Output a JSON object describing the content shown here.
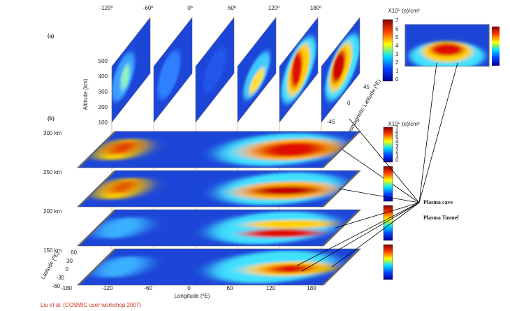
{
  "panel_labels": [
    "(a)",
    "(b)"
  ],
  "longitude_top": [
    "-120º",
    "-60º",
    "0º",
    "60º",
    "120º",
    "180º"
  ],
  "altitude_axis": {
    "title": "Altitude (km)",
    "ticks": [
      "500",
      "400",
      "300",
      "200",
      "100"
    ]
  },
  "latitude_side": {
    "title": "Geomagnetic Latitude (ºE)",
    "ticks": [
      "45",
      "0",
      "-45"
    ]
  },
  "colorbar_title": "X10⁵ (e)/cm³",
  "colorbar_ticks": [
    "7",
    "6",
    "5",
    "4",
    "3",
    "2",
    "1",
    "0"
  ],
  "layers": [
    "300 km",
    "250 km",
    "200 km",
    "150 km"
  ],
  "annotations": [
    "Plasma cave",
    "Plasma Tunnel"
  ],
  "longitude_axis": {
    "title": "Longitude (ºE)",
    "ticks": [
      "-180",
      "-120",
      "-60",
      "0",
      "60",
      "120",
      "180"
    ]
  },
  "latitude_axis": {
    "title": "Latitude (ºE)",
    "ticks": [
      "60",
      "30",
      "0",
      "-30",
      "-60"
    ]
  },
  "citation": "Liu et al. (COSMIC user workshop 2007)"
}
